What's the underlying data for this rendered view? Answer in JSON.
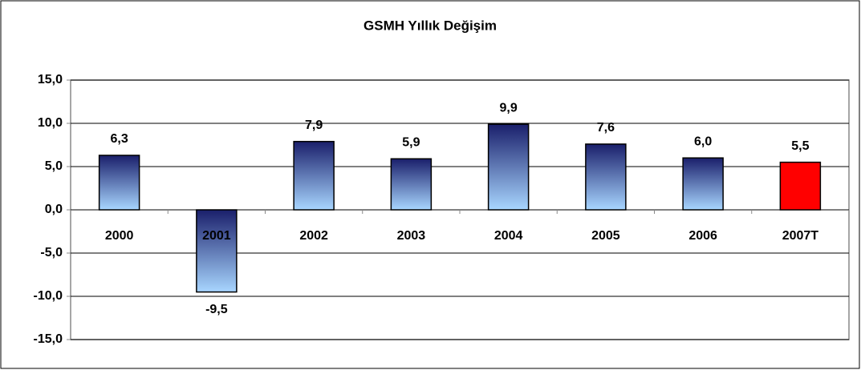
{
  "chart_data": {
    "type": "bar",
    "title": "GSMH Yıllık Değişim",
    "categories": [
      "2000",
      "2001",
      "2002",
      "2003",
      "2004",
      "2005",
      "2006",
      "2007T"
    ],
    "values": [
      6.3,
      -9.5,
      7.9,
      5.9,
      9.9,
      7.6,
      6.0,
      5.5
    ],
    "value_labels": [
      "6,3",
      "-9,5",
      "7,9",
      "5,9",
      "9,9",
      "7,6",
      "6,0",
      "5,5"
    ],
    "colors": [
      "#1a1f6b",
      "#1a1f6b",
      "#1a1f6b",
      "#1a1f6b",
      "#1a1f6b",
      "#1a1f6b",
      "#1a1f6b",
      "#ff0000"
    ],
    "gradient_bottom": [
      "#a8d6ff",
      "#a8d6ff",
      "#a8d6ff",
      "#a8d6ff",
      "#a8d6ff",
      "#a8d6ff",
      "#a8d6ff",
      "#ff0000"
    ],
    "ylim": [
      -15,
      15
    ],
    "yticks": [
      {
        "value": -15,
        "label": "-15,0"
      },
      {
        "value": -10,
        "label": "-10,0"
      },
      {
        "value": -5,
        "label": "-5,0"
      },
      {
        "value": 0,
        "label": "0,0"
      },
      {
        "value": 5,
        "label": "5,0"
      },
      {
        "value": 10,
        "label": "10,0"
      },
      {
        "value": 15,
        "label": "15,0"
      }
    ],
    "grid": true
  }
}
